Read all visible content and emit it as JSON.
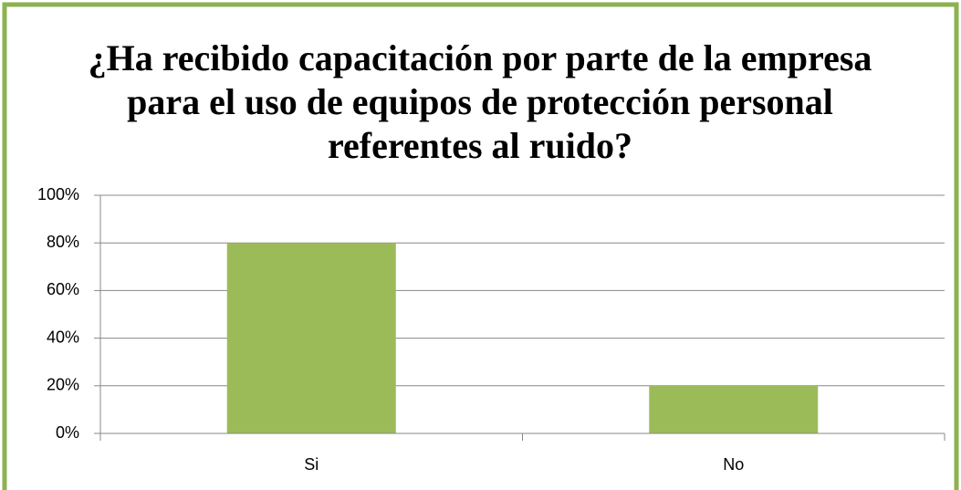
{
  "chart_data": {
    "type": "bar",
    "title": "¿Ha recibido capacitación por parte de la empresa para el uso de equipos de protección personal referentes al ruido?",
    "categories": [
      "Si",
      "No"
    ],
    "values": [
      80,
      20
    ],
    "color": "#9bbb59",
    "ylim": [
      0,
      100
    ],
    "yticks": [
      {
        "value": 0,
        "label": "0%"
      },
      {
        "value": 20,
        "label": "20%"
      },
      {
        "value": 40,
        "label": "40%"
      },
      {
        "value": 60,
        "label": "60%"
      },
      {
        "value": 80,
        "label": "80%"
      },
      {
        "value": 100,
        "label": "100%"
      }
    ],
    "grid": true
  }
}
